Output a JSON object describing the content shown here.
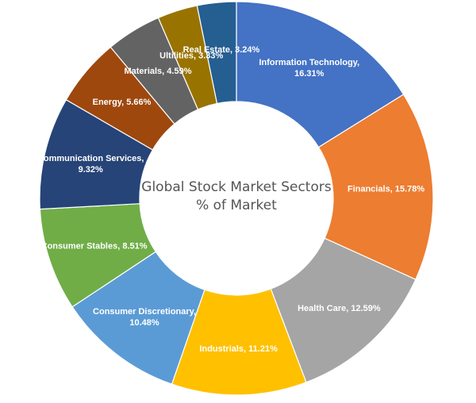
{
  "chart_data": {
    "type": "pie",
    "style": "donut",
    "title_lines": [
      "Global Stock Market Sectors",
      "% of Market"
    ],
    "slices": [
      {
        "name": "Information Technology",
        "value": 16.31,
        "label_lines": [
          "Information Technology,",
          "16.31%"
        ],
        "color": "#4472C4"
      },
      {
        "name": "Financials",
        "value": 15.78,
        "label_lines": [
          "Financials, 15.78%"
        ],
        "color": "#ED7D31"
      },
      {
        "name": "Health Care",
        "value": 12.59,
        "label_lines": [
          "Health Care, 12.59%"
        ],
        "color": "#A5A5A5"
      },
      {
        "name": "Industrials",
        "value": 11.21,
        "label_lines": [
          "Industrials, 11.21%"
        ],
        "color": "#FFC000"
      },
      {
        "name": "Consumer Discretionary",
        "value": 10.48,
        "label_lines": [
          "Consumer Discretionary,",
          "10.48%"
        ],
        "color": "#5B9BD5"
      },
      {
        "name": "Consumer Stables",
        "value": 8.51,
        "label_lines": [
          "Consumer Stables, 8.51%"
        ],
        "color": "#70AD47"
      },
      {
        "name": "Communication Services",
        "value": 9.32,
        "label_lines": [
          "Communication Services,",
          "9.32%"
        ],
        "color": "#264478"
      },
      {
        "name": "Energy",
        "value": 5.66,
        "label_lines": [
          "Energy, 5.66%"
        ],
        "color": "#9E480E"
      },
      {
        "name": "Materials",
        "value": 4.59,
        "label_lines": [
          "Materials, 4.59%"
        ],
        "color": "#636363"
      },
      {
        "name": "Ultilities",
        "value": 3.33,
        "label_lines": [
          "Ultilities, 3.33%"
        ],
        "color": "#997300"
      },
      {
        "name": "Real Estate",
        "value": 3.24,
        "label_lines": [
          "Real Estate, 3.24%"
        ],
        "color": "#255E91"
      }
    ]
  }
}
